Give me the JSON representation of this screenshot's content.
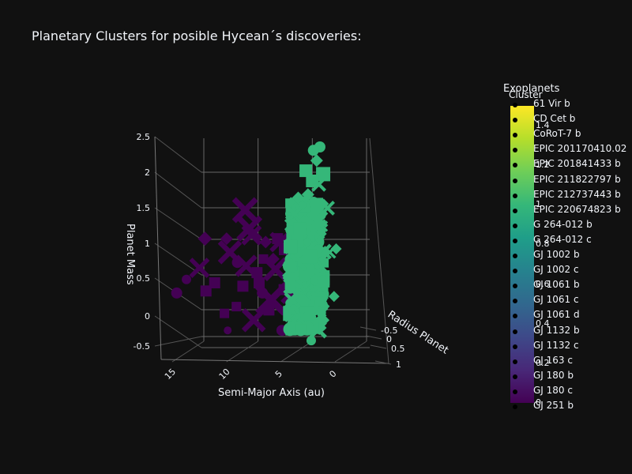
{
  "title": "Planetary Clusters for posible Hycean´s discoveries:",
  "legend": {
    "title": "Exoplanets",
    "items": [
      "61 Vir b",
      "CD Cet b",
      "CoRoT-7 b",
      "EPIC 201170410.02",
      "EPIC 201841433 b",
      "EPIC 211822797 b",
      "EPIC 212737443 b",
      "EPIC 220674823 b",
      "G 264-012 b",
      "G 264-012 c",
      "GJ 1002 b",
      "GJ 1002 c",
      "GJ 1061 b",
      "GJ 1061 c",
      "GJ 1061 d",
      "GJ 1132 b",
      "GJ 1132 c",
      "GJ 163 c",
      "GJ 180 b",
      "GJ 180 c",
      "GJ 251 b"
    ]
  },
  "colorbar": {
    "title": "Cluster",
    "ticks": [
      "1.4",
      "1.2",
      "1",
      "0.8",
      "0.6",
      "0.4",
      "0.2",
      "0"
    ],
    "colors": [
      "#440154",
      "#482878",
      "#3e4989",
      "#31688e",
      "#26828e",
      "#1f9e89",
      "#35b779",
      "#6ece58",
      "#b5de2b",
      "#fde725"
    ]
  },
  "chart_data": {
    "type": "scatter",
    "mode": "3d",
    "title": "Planetary Clusters for posible Hycean´s discoveries:",
    "axes": {
      "x": {
        "label": "Semi-Major Axis (au)",
        "ticks": [
          "0",
          "5",
          "10",
          "15"
        ],
        "range": [
          0,
          19
        ]
      },
      "y": {
        "label": "Radius Planet",
        "ticks": [
          "-0.5",
          "0",
          "0.5",
          "1"
        ],
        "range": [
          -0.7,
          1.2
        ]
      },
      "z": {
        "label": "Planet Mass",
        "ticks": [
          "-0.5",
          "0",
          "0.5",
          "1",
          "1.5",
          "2",
          "2.5"
        ],
        "range": [
          -0.7,
          2.5
        ]
      }
    },
    "grid": true,
    "colorscale": "viridis",
    "color_range": [
      0,
      1.5
    ],
    "series": [
      {
        "cluster": 0,
        "color": "#440154",
        "points": [
          {
            "x": 11.2,
            "z": 1.57,
            "s": "x",
            "size": 28
          },
          {
            "x": 17.5,
            "z": 0.35,
            "s": "circle",
            "size": 14
          },
          {
            "x": 16.6,
            "z": 0.55,
            "s": "circle",
            "size": 12
          },
          {
            "x": 15.4,
            "z": 0.72,
            "s": "x",
            "size": 22
          },
          {
            "x": 14.8,
            "z": 0.38,
            "s": "square",
            "size": 14
          },
          {
            "x": 14.9,
            "z": 1.15,
            "s": "diamond",
            "size": 18
          },
          {
            "x": 14.0,
            "z": 0.5,
            "s": "square",
            "size": 14
          },
          {
            "x": 13.1,
            "z": 0.05,
            "s": "square",
            "size": 12
          },
          {
            "x": 12.8,
            "z": -0.2,
            "s": "circle",
            "size": 10
          },
          {
            "x": 12.9,
            "z": 1.15,
            "s": "diamond",
            "size": 16
          },
          {
            "x": 12.6,
            "z": 0.95,
            "s": "x",
            "size": 26
          },
          {
            "x": 12.0,
            "z": 0.15,
            "s": "square",
            "size": 12
          },
          {
            "x": 11.9,
            "z": 0.8,
            "s": "circle",
            "size": 14
          },
          {
            "x": 11.4,
            "z": 0.45,
            "s": "square",
            "size": 14
          },
          {
            "x": 11.1,
            "z": 0.75,
            "s": "x",
            "size": 24
          },
          {
            "x": 10.8,
            "z": 1.3,
            "s": "x",
            "size": 28
          },
          {
            "x": 10.6,
            "z": 1.2,
            "s": "x",
            "size": 22
          },
          {
            "x": 10.4,
            "z": -0.05,
            "s": "x",
            "size": 26
          },
          {
            "x": 10.1,
            "z": 0.65,
            "s": "square",
            "size": 14
          },
          {
            "x": 9.9,
            "z": 0.5,
            "s": "square",
            "size": 14
          },
          {
            "x": 9.6,
            "z": 0.35,
            "s": "circle",
            "size": 14
          },
          {
            "x": 9.5,
            "z": 0.85,
            "s": "square",
            "size": 12
          },
          {
            "x": 9.3,
            "z": 1.1,
            "s": "diamond",
            "size": 16
          },
          {
            "x": 9.0,
            "z": 0.1,
            "s": "square",
            "size": 14
          },
          {
            "x": 8.8,
            "z": 0.25,
            "s": "x",
            "size": 34
          },
          {
            "x": 8.6,
            "z": 0.85,
            "s": "diamond",
            "size": 16
          },
          {
            "x": 8.4,
            "z": 0.7,
            "s": "x",
            "size": 26
          },
          {
            "x": 8.2,
            "z": 1.15,
            "s": "square",
            "size": 14
          },
          {
            "x": 8.0,
            "z": 1.1,
            "s": "x",
            "size": 22
          },
          {
            "x": 7.8,
            "z": -0.2,
            "s": "circle",
            "size": 14
          },
          {
            "x": 7.6,
            "z": 0.4,
            "s": "square",
            "size": 14
          },
          {
            "x": 7.5,
            "z": 1.0,
            "s": "square",
            "size": 16
          },
          {
            "x": 7.3,
            "z": 0.05,
            "s": "diamond",
            "size": 16
          },
          {
            "x": 7.1,
            "z": 0.75,
            "s": "diamond",
            "size": 16
          },
          {
            "x": 6.9,
            "z": 0.35,
            "s": "x",
            "size": 24
          },
          {
            "x": 6.7,
            "z": 1.15,
            "s": "square",
            "size": 14
          },
          {
            "x": 6.5,
            "z": 0.6,
            "s": "square",
            "size": 16
          },
          {
            "x": 6.4,
            "z": 0.9,
            "s": "x",
            "size": 26
          },
          {
            "x": 6.2,
            "z": 0.2,
            "s": "square",
            "size": 12
          },
          {
            "x": 6.0,
            "z": -0.15,
            "s": "diamond",
            "size": 18
          },
          {
            "x": 5.9,
            "z": 1.2,
            "s": "circle",
            "size": 12
          },
          {
            "x": 5.8,
            "z": 0.85,
            "s": "square",
            "size": 14
          }
        ]
      },
      {
        "cluster": 1,
        "color": "#35b779",
        "points": [
          {
            "x": 4.3,
            "z": 2.5,
            "s": "circle",
            "size": 14
          },
          {
            "x": 4.9,
            "z": 2.45,
            "s": "circle",
            "size": 14
          },
          {
            "x": 4.6,
            "z": 2.3,
            "s": "diamond",
            "size": 16
          },
          {
            "x": 5.6,
            "z": 2.15,
            "s": "square",
            "size": 16
          },
          {
            "x": 4.0,
            "z": 2.1,
            "s": "square",
            "size": 18
          },
          {
            "x": 5.0,
            "z": 2.0,
            "s": "square",
            "size": 16
          },
          {
            "x": 4.4,
            "z": 1.95,
            "s": "x",
            "size": 16
          },
          {
            "x": 6.3,
            "z": 1.75,
            "s": "diamond",
            "size": 16
          },
          {
            "x": 5.4,
            "z": 1.8,
            "s": "diamond",
            "size": 16
          },
          {
            "x": 3.6,
            "z": 1.6,
            "s": "x",
            "size": 16
          },
          {
            "x": 5.1,
            "z": -0.35,
            "s": "circle",
            "size": 12
          },
          {
            "x": 4.0,
            "z": -0.05,
            "s": "diamond",
            "size": 16
          },
          {
            "x": 3.4,
            "z": 0.95,
            "s": "x",
            "size": 14
          },
          {
            "x": 2.8,
            "z": 1.0,
            "s": "diamond",
            "size": 14
          },
          {
            "x": 3.0,
            "z": 0.3,
            "s": "diamond",
            "size": 14
          },
          {
            "x": 6.3,
            "z": 0.0,
            "s": "x",
            "size": 14
          }
        ],
        "dense_region": {
          "x": [
            3.2,
            6.4
          ],
          "z": [
            -0.2,
            1.7
          ],
          "count": 260
        }
      }
    ]
  }
}
